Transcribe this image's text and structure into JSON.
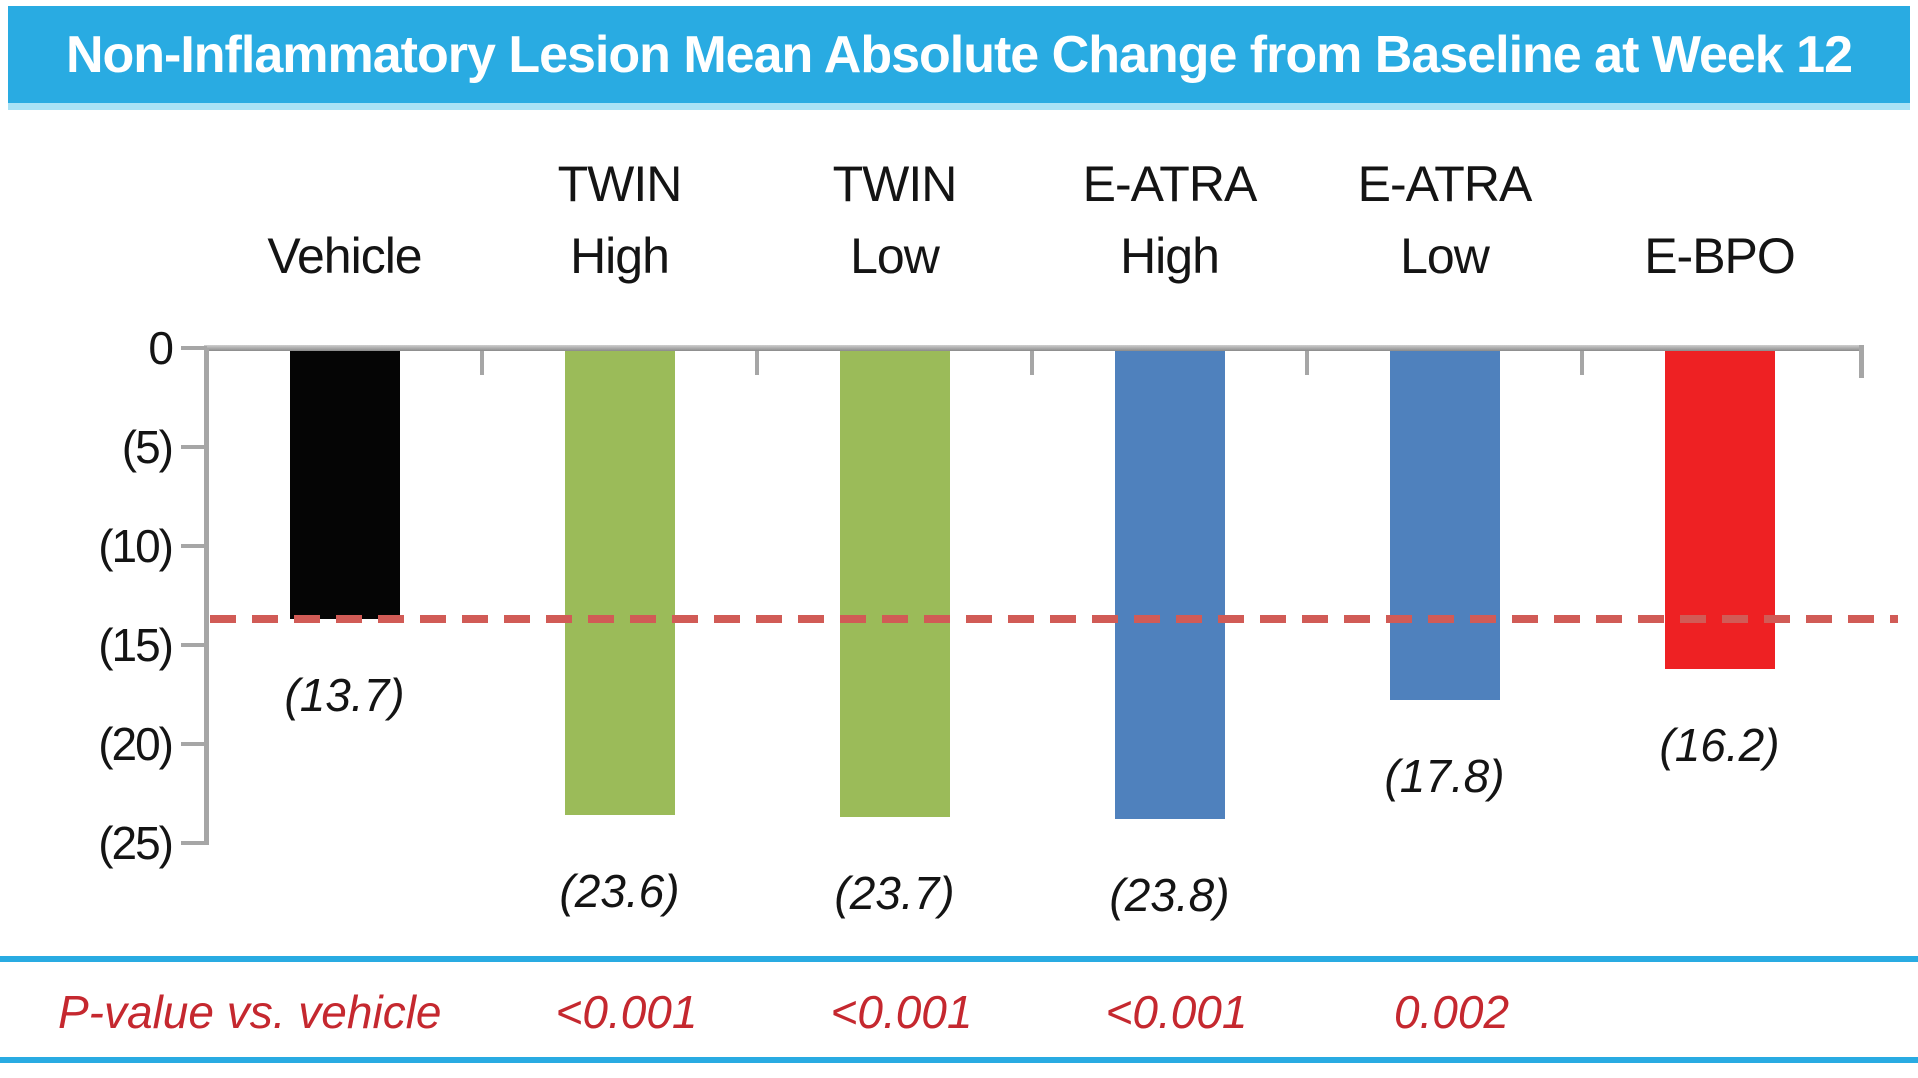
{
  "title": "Non-Inflammatory Lesion Mean Absolute Change from Baseline at Week 12",
  "colors": {
    "banner_background": "#29ABE2",
    "banner_underline": "#A9E2F6",
    "axis_gray": "#A6A6A6",
    "axis_gradient_top": "#CFCFCF",
    "axis_gradient_bottom": "#8A8A8A",
    "reference_dash_red": "#D15B56",
    "p_value_red": "#C5282F",
    "text_black": "#141414",
    "divider_cyan": "#29ABE2"
  },
  "chart_data": {
    "type": "bar",
    "title": "Non-Inflammatory Lesion Mean Absolute Change from Baseline at Week 12",
    "categories": [
      "Vehicle",
      "TWIN High",
      "TWIN Low",
      "E-ATRA High",
      "E-ATRA Low",
      "E-BPO"
    ],
    "header_lines": [
      [
        "Vehicle"
      ],
      [
        "TWIN",
        "High"
      ],
      [
        "TWIN",
        "Low"
      ],
      [
        "E-ATRA",
        "High"
      ],
      [
        "E-ATRA",
        "Low"
      ],
      [
        "E-BPO"
      ]
    ],
    "values": [
      -13.7,
      -23.6,
      -23.7,
      -23.8,
      -17.8,
      -16.2
    ],
    "value_labels": [
      "(13.7)",
      "(23.6)",
      "(23.7)",
      "(23.8)",
      "(17.8)",
      "(16.2)"
    ],
    "bar_colors": [
      "#050505",
      "#9BBB59",
      "#9BBB59",
      "#4F81BD",
      "#4F81BD",
      "#EE2123"
    ],
    "xlabel": "",
    "ylabel": "",
    "ylim": [
      -25,
      0
    ],
    "y_ticks": [
      0,
      -5,
      -10,
      -15,
      -20,
      -25
    ],
    "y_tick_labels": [
      "0",
      "(5)",
      "(10)",
      "(15)",
      "(20)",
      "(25)"
    ],
    "grid": false,
    "legend": false,
    "reference_line": {
      "value": -13.7,
      "style": "dashed",
      "meaning": "vehicle response level"
    },
    "p_value_row": {
      "label": "P-value vs. vehicle",
      "values_by_category": [
        "",
        "<0.001",
        "<0.001",
        "<0.001",
        "0.002",
        ""
      ]
    }
  }
}
